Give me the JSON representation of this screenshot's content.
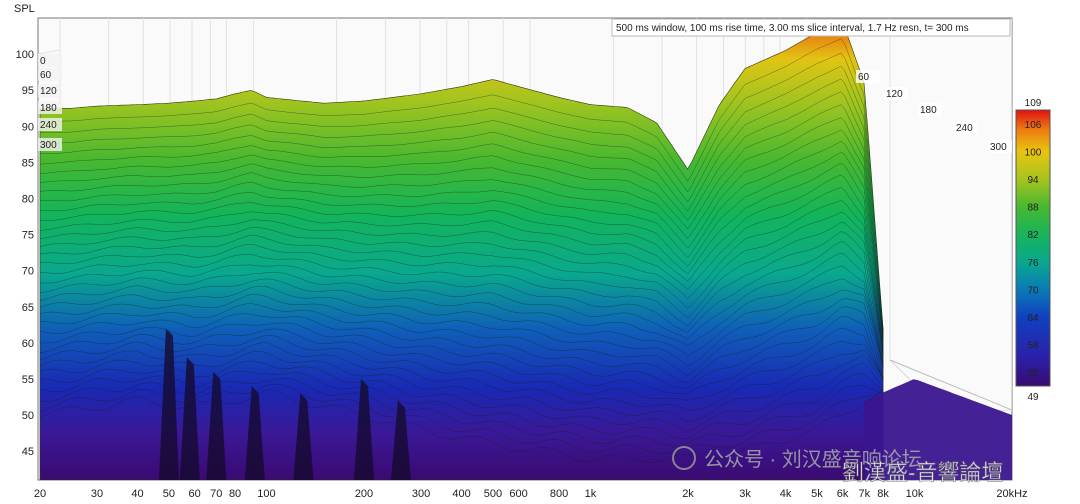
{
  "chart_data": {
    "type": "waterfall",
    "ylabel": "SPL",
    "annotation": "500 ms window, 100 ms rise time, 3.00 ms slice interval, 1.7 Hz resn, t= 300 ms",
    "y_axis": {
      "ticks": [
        45,
        50,
        55,
        60,
        65,
        70,
        75,
        80,
        85,
        90,
        95,
        100
      ],
      "range": [
        41,
        105
      ]
    },
    "x_axis": {
      "scale": "log",
      "range": [
        20,
        20000
      ],
      "ticks": [
        {
          "value": 20,
          "label": "20"
        },
        {
          "value": 30,
          "label": "30"
        },
        {
          "value": 40,
          "label": "40"
        },
        {
          "value": 50,
          "label": "50"
        },
        {
          "value": 60,
          "label": "60"
        },
        {
          "value": 70,
          "label": "70"
        },
        {
          "value": 80,
          "label": "80"
        },
        {
          "value": 100,
          "label": "100"
        },
        {
          "value": 200,
          "label": "200"
        },
        {
          "value": 300,
          "label": "300"
        },
        {
          "value": 400,
          "label": "400"
        },
        {
          "value": 500,
          "label": "500"
        },
        {
          "value": 600,
          "label": "600"
        },
        {
          "value": 800,
          "label": "800"
        },
        {
          "value": 1000,
          "label": "1k"
        },
        {
          "value": 2000,
          "label": "2k"
        },
        {
          "value": 3000,
          "label": "3k"
        },
        {
          "value": 4000,
          "label": "4k"
        },
        {
          "value": 5000,
          "label": "5k"
        },
        {
          "value": 6000,
          "label": "6k"
        },
        {
          "value": 7000,
          "label": "7k"
        },
        {
          "value": 8000,
          "label": "8k"
        },
        {
          "value": 10000,
          "label": "10k"
        },
        {
          "value": 20000,
          "label": "20kHz"
        }
      ]
    },
    "time_labels_left": [
      "0",
      "60",
      "120",
      "180",
      "240",
      "300"
    ],
    "time_labels_right": [
      "60",
      "120",
      "180",
      "240",
      "300"
    ],
    "colorbar": {
      "min": 49,
      "max": 109,
      "ticks": [
        52,
        58,
        64,
        70,
        76,
        82,
        88,
        94,
        100,
        106
      ]
    },
    "front_slice": {
      "freq": [
        20,
        25,
        30,
        40,
        50,
        60,
        70,
        80,
        90,
        100,
        150,
        200,
        300,
        400,
        500,
        600,
        800,
        1000,
        1300,
        1600,
        2000,
        2500,
        3000,
        4000,
        5000,
        6000,
        7000,
        8000
      ],
      "spl": [
        92.4,
        92.5,
        92.8,
        93.0,
        93.2,
        93.5,
        93.8,
        94.5,
        95.0,
        94.0,
        93.2,
        93.5,
        94.5,
        95.5,
        96.5,
        95.5,
        94.0,
        93.0,
        92.6,
        90.5,
        84.0,
        93.0,
        98.0,
        100.5,
        103.0,
        104.5,
        96.0,
        62.0
      ]
    },
    "back_slice": {
      "freq": [
        20,
        40,
        60,
        100,
        200,
        300,
        500,
        1000,
        2000,
        3000,
        5000,
        7000,
        10000,
        20000
      ],
      "spl": [
        50,
        52,
        51,
        53,
        50,
        48,
        46,
        44,
        44,
        45,
        48,
        52,
        55,
        50
      ]
    }
  },
  "watermark": {
    "line1": "公众号 · 刘汉盛音响论坛",
    "line2": "劉漢盛-音響論壇"
  }
}
